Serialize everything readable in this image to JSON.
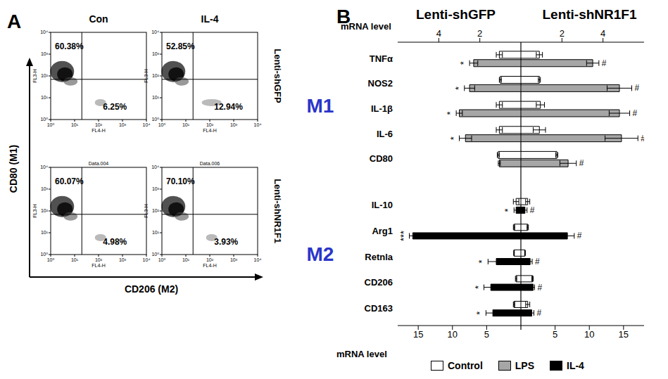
{
  "chart_data": [
    {
      "type": "flow_cytometry",
      "panel": "A",
      "x_label": "CD206 (M2)",
      "y_label": "CD80 (M1)",
      "columns": [
        "Con",
        "IL-4"
      ],
      "rows": [
        "Lenti-shGFP",
        "Lenti-shNR1F1"
      ],
      "log": true,
      "xlim": [
        1,
        10000
      ],
      "ylim": [
        1,
        10000
      ],
      "xticks": [
        {
          "value": 1,
          "label": "10⁰"
        },
        {
          "value": 10,
          "label": "10¹"
        },
        {
          "value": 100,
          "label": "10²"
        },
        {
          "value": 1000,
          "label": "10³"
        },
        {
          "value": 10000,
          "label": "10⁴"
        }
      ],
      "yticks": [
        {
          "value": 1,
          "label": "10⁰"
        },
        {
          "value": 10,
          "label": "10¹"
        },
        {
          "value": 100,
          "label": "10²"
        },
        {
          "value": 1000,
          "label": "10³"
        },
        {
          "value": 10000,
          "label": "10⁴"
        }
      ],
      "channel_labels": {
        "x": "FL4-H",
        "y": "FL3-H"
      },
      "gates": {
        "x": 20,
        "y": 70
      },
      "plots": [
        {
          "row": "Lenti-shGFP",
          "column": "Con",
          "values": [
            60.38,
            6.25
          ],
          "value_labels": [
            "60.38%",
            "6.25%"
          ]
        },
        {
          "row": "Lenti-shGFP",
          "column": "IL-4",
          "values": [
            52.85,
            12.94
          ],
          "value_labels": [
            "52.85%",
            "12.94%"
          ]
        },
        {
          "row": "Lenti-shNR1F1",
          "column": "Con",
          "file": "Data.004",
          "values": [
            60.07,
            4.98
          ],
          "value_labels": [
            "60.07%",
            "4.98%"
          ]
        },
        {
          "row": "Lenti-shNR1F1",
          "column": "IL-4",
          "file": "Data.006",
          "values": [
            70.1,
            3.93
          ],
          "value_labels": [
            "70.10%",
            "3.93%"
          ]
        }
      ]
    },
    {
      "type": "bar",
      "panel": "B",
      "orientation": "horizontal",
      "sides": [
        "Lenti-shGFP",
        "Lenti-shNR1F1"
      ],
      "axis_label": "mRNA level",
      "series": [
        {
          "name": "Control",
          "color": "#ffffff"
        },
        {
          "name": "LPS",
          "color": "#a6a6a6"
        },
        {
          "name": "IL-4",
          "color": "#000000"
        }
      ],
      "groups": [
        {
          "name": "M1",
          "color": "#2a35c9",
          "treatment": "LPS",
          "xlim": [
            0,
            6
          ],
          "xticks": [
            2,
            4
          ],
          "genes": [
            {
              "name": "TNFα",
              "control": [
                1.05,
                0.9
              ],
              "control_error": [
                0.15,
                0.15
              ],
              "treatment": [
                2.3,
                3.5
              ],
              "treatment_error": [
                0.2,
                0.3
              ],
              "marks": [
                "*",
                "#"
              ]
            },
            {
              "name": "NOS2",
              "control": [
                1.0,
                0.9
              ],
              "control_error": [
                0.05,
                0.05
              ],
              "treatment": [
                2.5,
                4.8
              ],
              "treatment_error": [
                0.25,
                0.6
              ],
              "marks": [
                "*",
                "#"
              ]
            },
            {
              "name": "IL-1β",
              "control": [
                1.05,
                0.95
              ],
              "control_error": [
                0.15,
                0.2
              ],
              "treatment": [
                3.0,
                4.8
              ],
              "treatment_error": [
                0.15,
                0.5
              ],
              "marks": [
                "*",
                "#"
              ]
            },
            {
              "name": "IL-6",
              "control": [
                1.05,
                0.9
              ],
              "control_error": [
                0.15,
                0.3
              ],
              "treatment": [
                2.7,
                4.9
              ],
              "treatment_error": [
                0.3,
                0.8
              ],
              "marks": [
                "*",
                "#"
              ]
            },
            {
              "name": "CD80",
              "control": [
                1.1,
                1.75
              ],
              "control_error": [
                0.05,
                0.05
              ],
              "treatment": [
                1.05,
                2.3
              ],
              "treatment_error": [
                0.05,
                0.4
              ],
              "marks": [
                null,
                "#"
              ]
            }
          ]
        },
        {
          "name": "M2",
          "color": "#2a35c9",
          "treatment": "IL-4",
          "xlim": [
            0,
            18
          ],
          "xticks": [
            5,
            10,
            15
          ],
          "genes": [
            {
              "name": "IL-10",
              "control": [
                0.7,
                1.0
              ],
              "control_error": [
                0.4,
                0.3
              ],
              "treatment": [
                0.7,
                0.6
              ],
              "treatment_error": [
                0.3,
                0.3
              ],
              "marks": [
                "*",
                "#"
              ]
            },
            {
              "name": "Arg1",
              "control": [
                1.0,
                1.0
              ],
              "control_error": [
                0.1,
                0.1
              ],
              "treatment": [
                15.8,
                6.8
              ],
              "treatment_error": [
                0.5,
                1.0
              ],
              "marks": [
                "***",
                "#"
              ]
            },
            {
              "name": "Retnla",
              "control": [
                1.0,
                0.6
              ],
              "control_error": [
                0.05,
                0.05
              ],
              "treatment": [
                3.6,
                1.35
              ],
              "treatment_error": [
                1.2,
                0.3
              ],
              "marks": [
                "*",
                "#"
              ]
            },
            {
              "name": "CD206",
              "control": [
                0.7,
                1.7
              ],
              "control_error": [
                0.1,
                0.1
              ],
              "treatment": [
                4.4,
                1.8
              ],
              "treatment_error": [
                1.0,
                0.2
              ],
              "marks": [
                "*",
                "#"
              ]
            },
            {
              "name": "CD163",
              "control": [
                1.0,
                1.0
              ],
              "control_error": [
                0.1,
                0.3
              ],
              "treatment": [
                4.1,
                1.6
              ],
              "treatment_error": [
                1.0,
                0.3
              ],
              "marks": [
                "*",
                "#"
              ]
            }
          ]
        }
      ]
    }
  ]
}
